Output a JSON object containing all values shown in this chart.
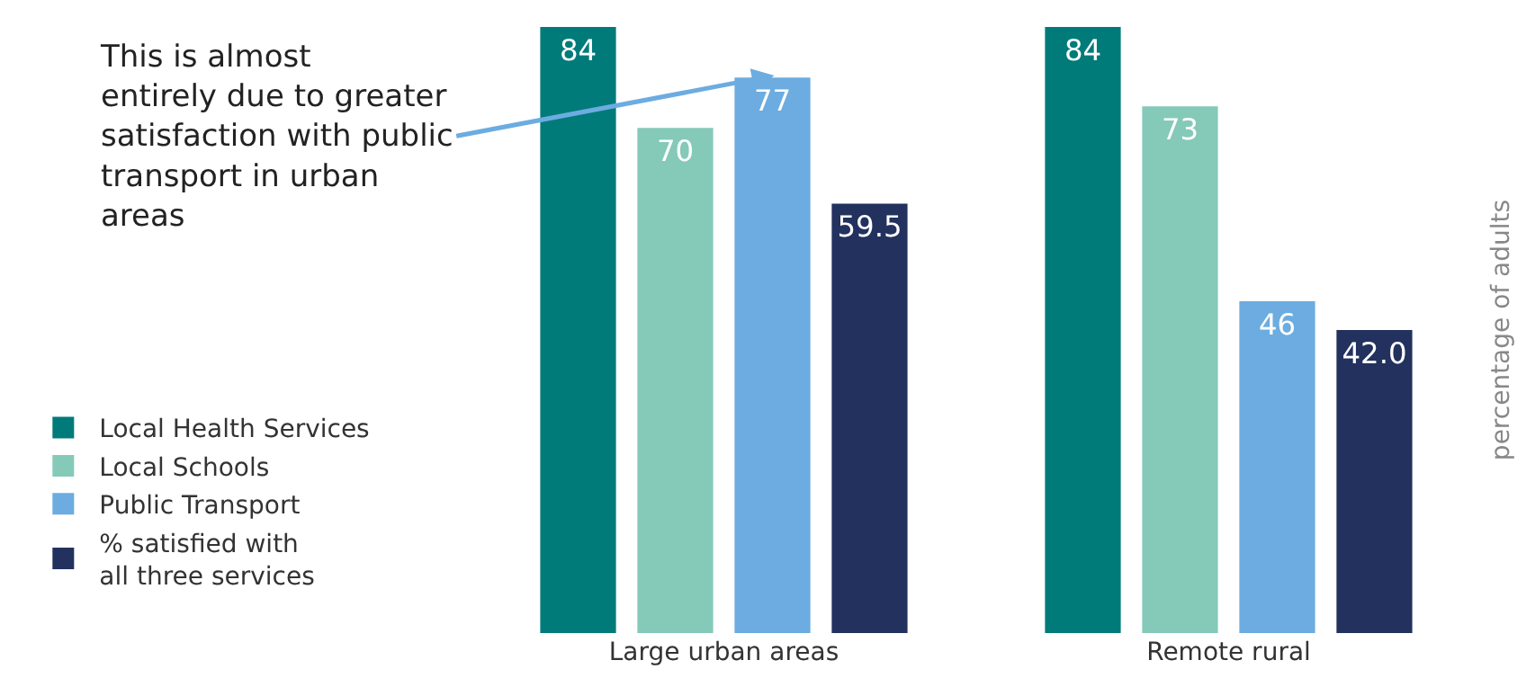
{
  "chart_data": {
    "type": "bar",
    "ylabel": "percentage of adults",
    "categories": [
      "Large urban areas",
      "Remote rural"
    ],
    "series": [
      {
        "name": "Local Health Services",
        "color": "#007b7a",
        "values": [
          84,
          84
        ],
        "value_labels": [
          "84",
          "84"
        ]
      },
      {
        "name": "Local Schools",
        "color": "#85c9b9",
        "values": [
          70,
          73
        ],
        "value_labels": [
          "70",
          "73"
        ]
      },
      {
        "name": "Public Transport",
        "color": "#6cace0",
        "values": [
          77,
          46
        ],
        "value_labels": [
          "77",
          "46"
        ]
      },
      {
        "name": "% satisfied with\nall three services",
        "color": "#22315e",
        "values": [
          59.5,
          42.0
        ],
        "value_labels": [
          "59.5",
          "42.0"
        ]
      }
    ],
    "ylim": [
      0,
      84
    ],
    "tick_labels": "x",
    "legend": "left",
    "annotations": [
      "This is almost\nentirely due to greater\nsatisfaction with public\ntransport in urban\nareas"
    ]
  }
}
